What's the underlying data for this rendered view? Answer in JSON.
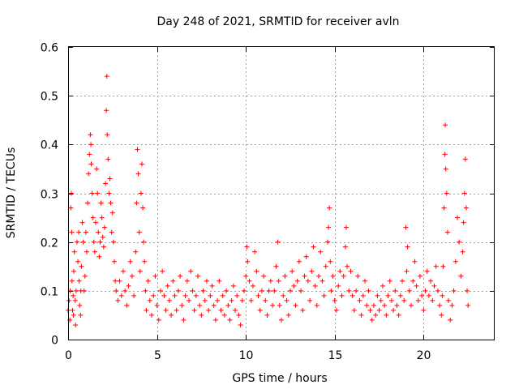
{
  "chart_data": {
    "type": "scatter",
    "title": "Day 248 of 2021, SRMTID for receiver avln",
    "xlabel": "GPS time / hours",
    "ylabel": "SRMTID / TECUs",
    "xlim": [
      0,
      24
    ],
    "ylim": [
      0,
      0.6
    ],
    "x_ticks": [
      0,
      5,
      10,
      15,
      20
    ],
    "x_tick_labels": [
      "0",
      "5",
      "10",
      "15",
      "20"
    ],
    "y_ticks": [
      0,
      0.1,
      0.2,
      0.3,
      0.4,
      0.5,
      0.6
    ],
    "y_tick_labels": [
      "0",
      "0.1",
      "0.2",
      "0.3",
      "0.4",
      "0.5",
      "0.6"
    ],
    "grid": true,
    "marker": "plus",
    "color": "#ff0000",
    "series": [
      {
        "name": "SRMTID",
        "points": [
          [
            0.0,
            0.06
          ],
          [
            0.05,
            0.08
          ],
          [
            0.1,
            0.04
          ],
          [
            0.12,
            0.1
          ],
          [
            0.15,
            0.27
          ],
          [
            0.18,
            0.3
          ],
          [
            0.2,
            0.22
          ],
          [
            0.22,
            0.12
          ],
          [
            0.25,
            0.06
          ],
          [
            0.28,
            0.09
          ],
          [
            0.3,
            0.05
          ],
          [
            0.32,
            0.14
          ],
          [
            0.35,
            0.18
          ],
          [
            0.4,
            0.08
          ],
          [
            0.42,
            0.03
          ],
          [
            0.45,
            0.1
          ],
          [
            0.5,
            0.2
          ],
          [
            0.55,
            0.16
          ],
          [
            0.6,
            0.22
          ],
          [
            0.62,
            0.12
          ],
          [
            0.65,
            0.07
          ],
          [
            0.7,
            0.05
          ],
          [
            0.72,
            0.1
          ],
          [
            0.75,
            0.15
          ],
          [
            0.8,
            0.24
          ],
          [
            0.85,
            0.2
          ],
          [
            0.9,
            0.1
          ],
          [
            0.95,
            0.13
          ],
          [
            1.0,
            0.22
          ],
          [
            1.05,
            0.18
          ],
          [
            1.1,
            0.28
          ],
          [
            1.15,
            0.34
          ],
          [
            1.2,
            0.38
          ],
          [
            1.25,
            0.42
          ],
          [
            1.28,
            0.4
          ],
          [
            1.3,
            0.36
          ],
          [
            1.35,
            0.3
          ],
          [
            1.4,
            0.25
          ],
          [
            1.45,
            0.2
          ],
          [
            1.5,
            0.18
          ],
          [
            1.55,
            0.24
          ],
          [
            1.6,
            0.35
          ],
          [
            1.65,
            0.3
          ],
          [
            1.7,
            0.22
          ],
          [
            1.75,
            0.17
          ],
          [
            1.8,
            0.2
          ],
          [
            1.85,
            0.28
          ],
          [
            1.9,
            0.25
          ],
          [
            1.95,
            0.21
          ],
          [
            2.0,
            0.19
          ],
          [
            2.05,
            0.23
          ],
          [
            2.1,
            0.32
          ],
          [
            2.15,
            0.47
          ],
          [
            2.18,
            0.54
          ],
          [
            2.2,
            0.42
          ],
          [
            2.25,
            0.37
          ],
          [
            2.3,
            0.3
          ],
          [
            2.35,
            0.33
          ],
          [
            2.4,
            0.28
          ],
          [
            2.45,
            0.22
          ],
          [
            2.5,
            0.26
          ],
          [
            2.55,
            0.2
          ],
          [
            2.6,
            0.16
          ],
          [
            2.65,
            0.12
          ],
          [
            2.7,
            0.1
          ],
          [
            2.8,
            0.08
          ],
          [
            2.9,
            0.12
          ],
          [
            3.0,
            0.09
          ],
          [
            3.1,
            0.14
          ],
          [
            3.2,
            0.1
          ],
          [
            3.3,
            0.07
          ],
          [
            3.4,
            0.11
          ],
          [
            3.5,
            0.16
          ],
          [
            3.6,
            0.13
          ],
          [
            3.7,
            0.09
          ],
          [
            3.8,
            0.18
          ],
          [
            3.85,
            0.28
          ],
          [
            3.9,
            0.39
          ],
          [
            3.95,
            0.34
          ],
          [
            4.0,
            0.22
          ],
          [
            4.05,
            0.14
          ],
          [
            4.1,
            0.3
          ],
          [
            4.15,
            0.36
          ],
          [
            4.2,
            0.27
          ],
          [
            4.25,
            0.2
          ],
          [
            4.3,
            0.16
          ],
          [
            4.35,
            0.1
          ],
          [
            4.4,
            0.06
          ],
          [
            4.5,
            0.12
          ],
          [
            4.6,
            0.08
          ],
          [
            4.7,
            0.05
          ],
          [
            4.8,
            0.09
          ],
          [
            4.9,
            0.13
          ],
          [
            5.0,
            0.07
          ],
          [
            5.1,
            0.04
          ],
          [
            5.2,
            0.1
          ],
          [
            5.3,
            0.14
          ],
          [
            5.4,
            0.09
          ],
          [
            5.5,
            0.06
          ],
          [
            5.6,
            0.11
          ],
          [
            5.7,
            0.08
          ],
          [
            5.8,
            0.05
          ],
          [
            5.9,
            0.12
          ],
          [
            6.0,
            0.09
          ],
          [
            6.1,
            0.06
          ],
          [
            6.2,
            0.1
          ],
          [
            6.3,
            0.13
          ],
          [
            6.4,
            0.07
          ],
          [
            6.5,
            0.04
          ],
          [
            6.6,
            0.09
          ],
          [
            6.7,
            0.12
          ],
          [
            6.8,
            0.08
          ],
          [
            6.9,
            0.14
          ],
          [
            7.0,
            0.1
          ],
          [
            7.1,
            0.06
          ],
          [
            7.2,
            0.09
          ],
          [
            7.3,
            0.13
          ],
          [
            7.4,
            0.07
          ],
          [
            7.5,
            0.05
          ],
          [
            7.6,
            0.1
          ],
          [
            7.7,
            0.08
          ],
          [
            7.8,
            0.12
          ],
          [
            7.9,
            0.06
          ],
          [
            8.0,
            0.09
          ],
          [
            8.1,
            0.11
          ],
          [
            8.2,
            0.07
          ],
          [
            8.3,
            0.04
          ],
          [
            8.4,
            0.08
          ],
          [
            8.5,
            0.12
          ],
          [
            8.6,
            0.06
          ],
          [
            8.7,
            0.09
          ],
          [
            8.8,
            0.05
          ],
          [
            8.9,
            0.1
          ],
          [
            9.0,
            0.07
          ],
          [
            9.1,
            0.04
          ],
          [
            9.2,
            0.08
          ],
          [
            9.3,
            0.11
          ],
          [
            9.4,
            0.06
          ],
          [
            9.5,
            0.09
          ],
          [
            9.6,
            0.05
          ],
          [
            9.7,
            0.03
          ],
          [
            9.8,
            0.08
          ],
          [
            9.9,
            0.1
          ],
          [
            10.0,
            0.13
          ],
          [
            10.05,
            0.19
          ],
          [
            10.1,
            0.16
          ],
          [
            10.2,
            0.12
          ],
          [
            10.3,
            0.08
          ],
          [
            10.4,
            0.11
          ],
          [
            10.5,
            0.18
          ],
          [
            10.6,
            0.14
          ],
          [
            10.7,
            0.09
          ],
          [
            10.8,
            0.06
          ],
          [
            10.9,
            0.1
          ],
          [
            11.0,
            0.13
          ],
          [
            11.1,
            0.08
          ],
          [
            11.2,
            0.05
          ],
          [
            11.3,
            0.1
          ],
          [
            11.4,
            0.12
          ],
          [
            11.5,
            0.07
          ],
          [
            11.6,
            0.1
          ],
          [
            11.7,
            0.15
          ],
          [
            11.8,
            0.2
          ],
          [
            11.85,
            0.12
          ],
          [
            11.9,
            0.07
          ],
          [
            12.0,
            0.04
          ],
          [
            12.1,
            0.09
          ],
          [
            12.2,
            0.13
          ],
          [
            12.3,
            0.08
          ],
          [
            12.4,
            0.05
          ],
          [
            12.5,
            0.1
          ],
          [
            12.6,
            0.14
          ],
          [
            12.7,
            0.11
          ],
          [
            12.8,
            0.07
          ],
          [
            12.9,
            0.12
          ],
          [
            13.0,
            0.16
          ],
          [
            13.1,
            0.1
          ],
          [
            13.2,
            0.06
          ],
          [
            13.3,
            0.13
          ],
          [
            13.4,
            0.17
          ],
          [
            13.5,
            0.12
          ],
          [
            13.6,
            0.08
          ],
          [
            13.7,
            0.14
          ],
          [
            13.8,
            0.19
          ],
          [
            13.9,
            0.11
          ],
          [
            14.0,
            0.07
          ],
          [
            14.1,
            0.13
          ],
          [
            14.2,
            0.18
          ],
          [
            14.3,
            0.12
          ],
          [
            14.4,
            0.09
          ],
          [
            14.5,
            0.15
          ],
          [
            14.6,
            0.2
          ],
          [
            14.65,
            0.23
          ],
          [
            14.7,
            0.27
          ],
          [
            14.75,
            0.16
          ],
          [
            14.8,
            0.1
          ],
          [
            14.9,
            0.13
          ],
          [
            15.0,
            0.08
          ],
          [
            15.1,
            0.06
          ],
          [
            15.2,
            0.11
          ],
          [
            15.3,
            0.14
          ],
          [
            15.4,
            0.09
          ],
          [
            15.5,
            0.13
          ],
          [
            15.6,
            0.19
          ],
          [
            15.65,
            0.23
          ],
          [
            15.7,
            0.15
          ],
          [
            15.8,
            0.1
          ],
          [
            15.9,
            0.14
          ],
          [
            16.0,
            0.09
          ],
          [
            16.1,
            0.06
          ],
          [
            16.2,
            0.1
          ],
          [
            16.3,
            0.13
          ],
          [
            16.4,
            0.08
          ],
          [
            16.5,
            0.05
          ],
          [
            16.6,
            0.09
          ],
          [
            16.7,
            0.12
          ],
          [
            16.8,
            0.07
          ],
          [
            16.9,
            0.1
          ],
          [
            17.0,
            0.06
          ],
          [
            17.1,
            0.04
          ],
          [
            17.2,
            0.07
          ],
          [
            17.3,
            0.05
          ],
          [
            17.4,
            0.09
          ],
          [
            17.5,
            0.06
          ],
          [
            17.6,
            0.08
          ],
          [
            17.7,
            0.11
          ],
          [
            17.8,
            0.07
          ],
          [
            17.9,
            0.05
          ],
          [
            18.0,
            0.09
          ],
          [
            18.1,
            0.12
          ],
          [
            18.2,
            0.08
          ],
          [
            18.3,
            0.06
          ],
          [
            18.4,
            0.1
          ],
          [
            18.5,
            0.07
          ],
          [
            18.6,
            0.05
          ],
          [
            18.7,
            0.09
          ],
          [
            18.8,
            0.12
          ],
          [
            18.9,
            0.08
          ],
          [
            19.0,
            0.23
          ],
          [
            19.05,
            0.14
          ],
          [
            19.1,
            0.19
          ],
          [
            19.2,
            0.1
          ],
          [
            19.3,
            0.07
          ],
          [
            19.4,
            0.12
          ],
          [
            19.5,
            0.16
          ],
          [
            19.6,
            0.11
          ],
          [
            19.7,
            0.08
          ],
          [
            19.8,
            0.13
          ],
          [
            19.9,
            0.09
          ],
          [
            20.0,
            0.06
          ],
          [
            20.1,
            0.1
          ],
          [
            20.2,
            0.14
          ],
          [
            20.3,
            0.09
          ],
          [
            20.4,
            0.12
          ],
          [
            20.5,
            0.08
          ],
          [
            20.6,
            0.11
          ],
          [
            20.7,
            0.15
          ],
          [
            20.8,
            0.1
          ],
          [
            20.9,
            0.07
          ],
          [
            21.0,
            0.05
          ],
          [
            21.05,
            0.09
          ],
          [
            21.1,
            0.15
          ],
          [
            21.15,
            0.27
          ],
          [
            21.2,
            0.38
          ],
          [
            21.22,
            0.44
          ],
          [
            21.25,
            0.35
          ],
          [
            21.3,
            0.3
          ],
          [
            21.35,
            0.22
          ],
          [
            21.4,
            0.08
          ],
          [
            21.5,
            0.04
          ],
          [
            21.6,
            0.07
          ],
          [
            21.7,
            0.1
          ],
          [
            21.8,
            0.16
          ],
          [
            21.9,
            0.25
          ],
          [
            22.0,
            0.2
          ],
          [
            22.1,
            0.13
          ],
          [
            22.2,
            0.18
          ],
          [
            22.25,
            0.24
          ],
          [
            22.3,
            0.3
          ],
          [
            22.35,
            0.37
          ],
          [
            22.4,
            0.27
          ],
          [
            22.45,
            0.1
          ],
          [
            22.5,
            0.07
          ]
        ]
      }
    ]
  }
}
